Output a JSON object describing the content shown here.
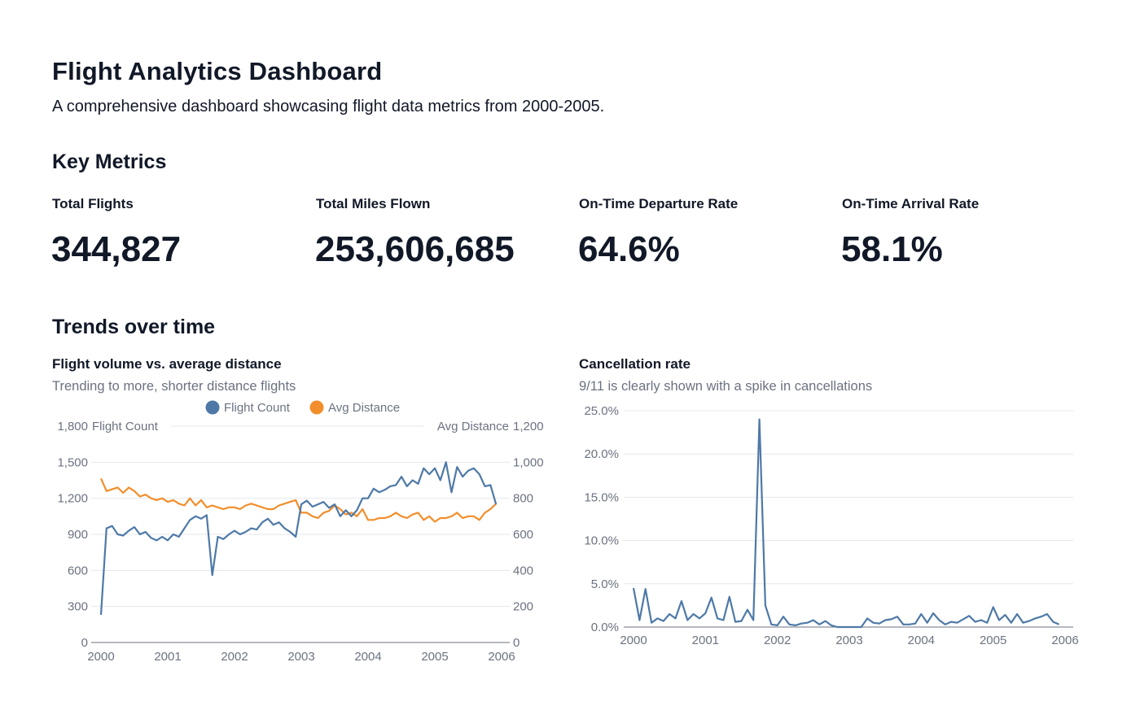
{
  "header": {
    "title": "Flight Analytics Dashboard",
    "subtitle": "A comprehensive dashboard showcasing flight data metrics from 2000-2005."
  },
  "metrics": {
    "heading": "Key Metrics",
    "items": [
      {
        "label": "Total Flights",
        "value": "344,827"
      },
      {
        "label": "Total Miles Flown",
        "value": "253,606,685"
      },
      {
        "label": "On-Time Departure Rate",
        "value": "64.6%"
      },
      {
        "label": "On-Time Arrival Rate",
        "value": "58.1%"
      }
    ]
  },
  "trends": {
    "heading": "Trends over time"
  },
  "chart_data": [
    {
      "type": "line",
      "title": "Flight volume vs. average distance",
      "subtitle": "Trending to more, shorter distance flights",
      "legend_position": "top",
      "grid": true,
      "x_ticks": [
        "2000",
        "2001",
        "2002",
        "2003",
        "2004",
        "2005",
        "2006"
      ],
      "xlim": [
        2000,
        2006
      ],
      "y_left": {
        "label": "Flight Count",
        "ylim": [
          0,
          1800
        ],
        "ticks": [
          "0",
          "300",
          "600",
          "900",
          "1,200",
          "1,500",
          "1,800"
        ]
      },
      "y_right": {
        "label": "Avg Distance",
        "ylim": [
          0,
          1200
        ],
        "ticks": [
          "0",
          "200",
          "400",
          "600",
          "800",
          "1,000",
          "1,200"
        ]
      },
      "series": [
        {
          "name": "Flight Count",
          "axis": "left",
          "color": "#4e79a7",
          "monthly_by_year": {
            "2000": [
              230,
              950,
              970,
              900,
              890,
              930,
              960,
              900,
              920,
              870,
              850,
              880
            ],
            "2001": [
              850,
              900,
              880,
              950,
              1020,
              1050,
              1030,
              1060,
              560,
              880,
              860,
              900
            ],
            "2002": [
              930,
              900,
              920,
              950,
              940,
              1000,
              1030,
              980,
              1000,
              950,
              920,
              880
            ],
            "2003": [
              1150,
              1180,
              1130,
              1150,
              1170,
              1120,
              1150,
              1050,
              1100,
              1050,
              1100,
              1200
            ],
            "2004": [
              1200,
              1280,
              1250,
              1270,
              1300,
              1310,
              1380,
              1300,
              1350,
              1320,
              1450,
              1400
            ],
            "2005": [
              1450,
              1350,
              1500,
              1250,
              1460,
              1380,
              1430,
              1450,
              1400,
              1300,
              1310,
              1150
            ]
          }
        },
        {
          "name": "Avg Distance",
          "axis": "right",
          "color": "#f28e2b",
          "monthly_by_year": {
            "2000": [
              910,
              840,
              850,
              860,
              830,
              860,
              840,
              810,
              820,
              800,
              790,
              800
            ],
            "2001": [
              780,
              790,
              770,
              760,
              800,
              760,
              790,
              750,
              760,
              750,
              740,
              750
            ],
            "2002": [
              750,
              740,
              760,
              770,
              760,
              750,
              740,
              740,
              760,
              770,
              780,
              790
            ],
            "2003": [
              720,
              720,
              700,
              690,
              720,
              730,
              760,
              740,
              710,
              720,
              700,
              740
            ],
            "2004": [
              680,
              680,
              690,
              690,
              700,
              720,
              700,
              690,
              710,
              720,
              680,
              700
            ],
            "2005": [
              670,
              690,
              690,
              700,
              720,
              690,
              700,
              700,
              680,
              720,
              740,
              770
            ]
          }
        }
      ]
    },
    {
      "type": "line",
      "title": "Cancellation rate",
      "subtitle": "9/11 is clearly shown with a spike in cancellations",
      "grid": true,
      "x_ticks": [
        "2000",
        "2001",
        "2002",
        "2003",
        "2004",
        "2005",
        "2006"
      ],
      "xlim": [
        2000,
        2006
      ],
      "ylim": [
        0,
        25
      ],
      "y_ticks": [
        "0.0%",
        "5.0%",
        "10.0%",
        "15.0%",
        "20.0%",
        "25.0%"
      ],
      "series": [
        {
          "color": "#4e79a7",
          "monthly_by_year": {
            "2000": [
              4.5,
              0.8,
              4.4,
              0.5,
              1.0,
              0.7,
              1.5,
              1.0,
              3.0,
              0.8,
              1.5,
              1.0
            ],
            "2001": [
              1.6,
              3.4,
              1.0,
              0.8,
              3.5,
              0.6,
              0.7,
              2.0,
              0.8,
              24,
              2.5,
              0.3
            ],
            "2002": [
              0.2,
              1.2,
              0.3,
              0.2,
              0.4,
              0.5,
              0.8,
              0.3,
              0.7,
              0.2,
              0.0,
              0.0
            ],
            "2003": [
              0,
              0,
              0,
              1.0,
              0.5,
              0.4,
              0.8,
              0.9,
              1.2,
              0.3,
              0.3,
              0.4
            ],
            "2004": [
              1.5,
              0.5,
              1.6,
              0.8,
              0.3,
              0.6,
              0.5,
              0.9,
              1.3,
              0.6,
              0.8,
              0.5
            ],
            "2005": [
              2.3,
              0.8,
              1.4,
              0.5,
              1.5,
              0.5,
              0.7,
              1.0,
              1.2,
              1.5,
              0.6,
              0.3
            ]
          }
        }
      ]
    }
  ]
}
